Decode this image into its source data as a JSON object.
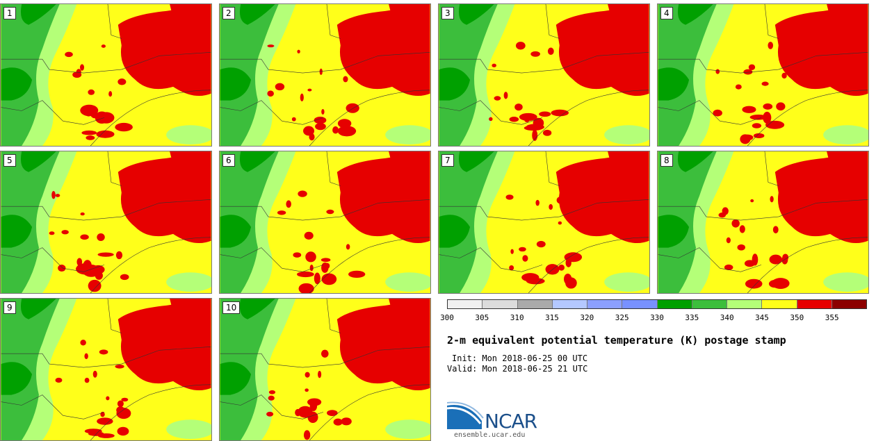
{
  "panels": [
    {
      "label": "1"
    },
    {
      "label": "2"
    },
    {
      "label": "3"
    },
    {
      "label": "4"
    },
    {
      "label": "5"
    },
    {
      "label": "6"
    },
    {
      "label": "7"
    },
    {
      "label": "8"
    },
    {
      "label": "9"
    },
    {
      "label": "10"
    }
  ],
  "colorbar": {
    "colors": [
      "#f0f0f0",
      "#dcdcdc",
      "#aaaaaa",
      "#b4c8ff",
      "#8ca0ff",
      "#7891ff",
      "#00a000",
      "#3cbe3c",
      "#b4ff78",
      "#ffff1a",
      "#e60000",
      "#8c0000"
    ],
    "ticks": [
      "300",
      "305",
      "310",
      "315",
      "320",
      "325",
      "330",
      "335",
      "340",
      "345",
      "350",
      "355"
    ]
  },
  "title": "2-m equivalent potential temperature (K) postage stamp",
  "init": "Init: Mon 2018-06-25 00 UTC",
  "valid": "Valid: Mon 2018-06-25 21 UTC",
  "logo": {
    "name": "NCAR",
    "site": "ensemble.ucar.edu"
  }
}
